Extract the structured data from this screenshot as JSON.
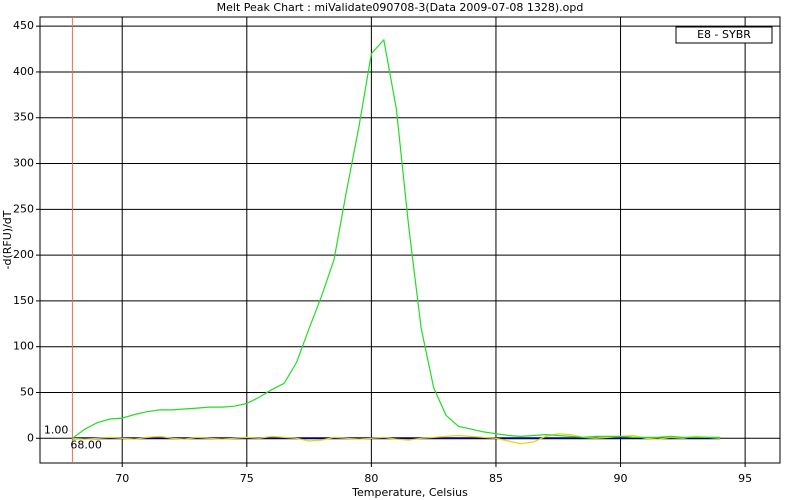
{
  "chart_data": {
    "type": "line",
    "title": "Melt Peak Chart : miValidate090708-3(Data 2009-07-08 1328).opd",
    "x_label": "Temperature, Celsius",
    "y_label": "-d(RFU)/dT",
    "x": [
      68,
      68.5,
      69,
      69.5,
      70,
      70.5,
      71,
      71.5,
      72,
      72.5,
      73,
      73.5,
      74,
      74.5,
      75,
      75.5,
      76,
      76.5,
      77,
      77.5,
      78,
      78.5,
      79,
      79.5,
      80,
      80.5,
      81,
      81.5,
      82,
      82.5,
      83,
      83.5,
      84,
      84.5,
      85,
      85.5,
      86,
      86.5,
      87,
      87.5,
      88,
      88.5,
      89,
      89.5,
      90,
      90.5,
      91,
      91.5,
      92,
      92.5,
      93,
      93.5,
      94
    ],
    "series": [
      {
        "name": "E8 - SYBR",
        "color": "#22dd22",
        "values": [
          0,
          10,
          17,
          21,
          22,
          26,
          29,
          31,
          31,
          32,
          33,
          34,
          34,
          35,
          38,
          45,
          53,
          60,
          83,
          120,
          155,
          195,
          270,
          340,
          420,
          435,
          360,
          230,
          120,
          55,
          25,
          13,
          10,
          7,
          5,
          3,
          2,
          3,
          4,
          3,
          2,
          1,
          2,
          2,
          2,
          1,
          1,
          1,
          2,
          1,
          1,
          1,
          1
        ]
      },
      {
        "color": "#e6d800",
        "values": [
          0,
          -1,
          0,
          1,
          0,
          -1,
          1,
          2,
          0,
          -1,
          1,
          0,
          -1,
          0,
          1,
          0,
          2,
          1,
          0,
          -3,
          -2,
          1,
          0,
          -1,
          0,
          1,
          -1,
          -2,
          0,
          1,
          2,
          3,
          2,
          1,
          0,
          -3,
          -6,
          -4,
          2,
          5,
          4,
          1,
          0,
          1,
          2,
          3,
          0,
          -1,
          1,
          0,
          2,
          1,
          0
        ]
      },
      {
        "color": "#000080",
        "values": [
          0,
          0,
          0,
          0,
          0,
          0,
          0,
          0,
          0,
          0,
          0,
          0,
          0,
          0,
          0,
          0,
          0,
          0,
          0,
          0,
          0,
          0,
          0,
          0,
          0,
          0,
          0,
          0,
          0,
          0,
          0,
          0,
          0,
          0,
          0,
          0,
          0,
          0,
          0,
          0,
          0,
          0,
          0,
          0,
          0,
          0,
          0,
          0,
          0,
          0,
          0,
          0,
          0
        ]
      }
    ],
    "xlim": [
      66.7,
      96.4
    ],
    "ylim": [
      -27,
      460
    ],
    "xticks": [
      70,
      75,
      80,
      85,
      90,
      95
    ],
    "yticks": [
      0,
      50,
      100,
      150,
      200,
      250,
      300,
      350,
      400,
      450
    ],
    "grid": true,
    "legend": "upper right",
    "marker": {
      "x": 68,
      "color": "#e07050",
      "y_text": "1.00",
      "x_text": "68.00"
    }
  }
}
